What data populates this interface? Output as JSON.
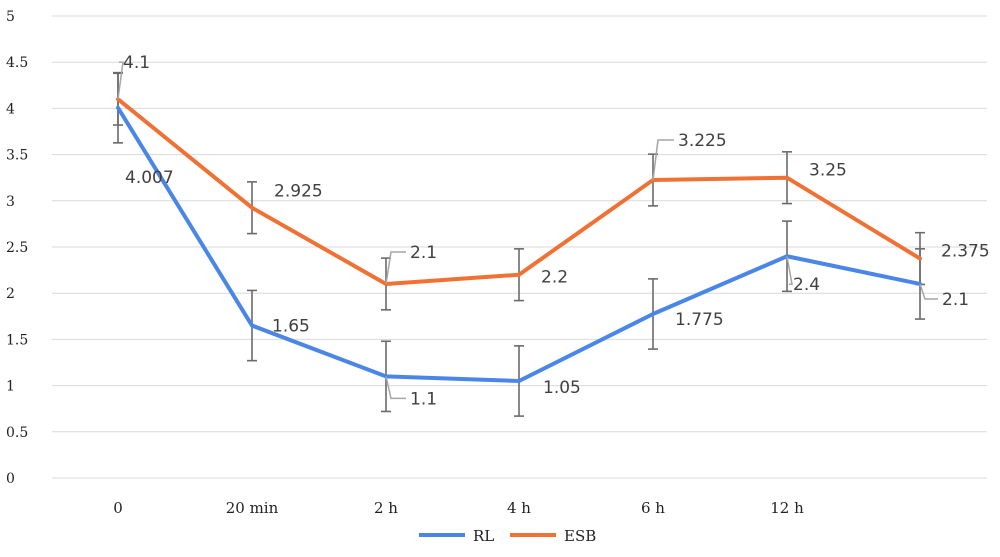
{
  "chart_data": {
    "type": "line",
    "categories": [
      "0",
      "20 min",
      "2 h",
      "4 h",
      "6 h",
      "12 h",
      ""
    ],
    "ylim": [
      0,
      5
    ],
    "yticks": [
      "0",
      "0.5",
      "1",
      "1.5",
      "2",
      "2.5",
      "3",
      "3.5",
      "4",
      "4.5",
      "5"
    ],
    "grid": true,
    "legend_position": "bottom",
    "series": [
      {
        "name": "RL",
        "color": "#4a86e8",
        "values": [
          4.007,
          1.65,
          1.1,
          1.05,
          1.775,
          2.4,
          2.1
        ],
        "labels": [
          "4.007",
          "1.65",
          "1.1",
          "1.05",
          "1.775",
          "2.4",
          "2.1"
        ],
        "error": [
          0.38,
          0.38,
          0.38,
          0.38,
          0.38,
          0.38,
          0.38
        ]
      },
      {
        "name": "ESB",
        "color": "#f07133",
        "values": [
          4.1,
          2.925,
          2.1,
          2.2,
          3.225,
          3.25,
          2.375
        ],
        "labels": [
          "4.1",
          "2.925",
          "2.1",
          "2.2",
          "3.225",
          "3.25",
          "2.375"
        ],
        "error": [
          0.28,
          0.28,
          0.28,
          0.28,
          0.28,
          0.28,
          0.28
        ]
      }
    ]
  }
}
